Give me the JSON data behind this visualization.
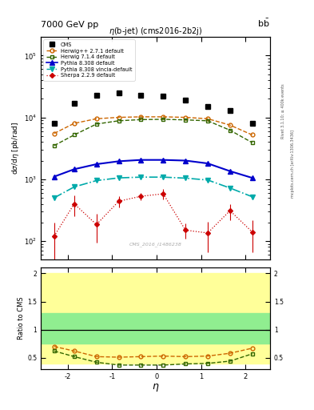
{
  "title_top": "7000 GeV pp",
  "title_top_right": "b$\\bar{b}$",
  "plot_title": "$\\eta$(b-jet) (cms2016-2b2j)",
  "xlabel": "$\\eta$",
  "ylabel_main": "d$\\sigma$/d$\\eta$ [pb/rad]",
  "ylabel_ratio": "Ratio to CMS",
  "right_label_top": "Rivet 3.1.10; ≥ 400k events",
  "right_label_bot": "mcplots.cern.ch [arXiv:1306.3436]",
  "watermark": "CMS_2016_I1486238",
  "cms_eta": [
    -2.3,
    -1.85,
    -1.35,
    -0.85,
    -0.35,
    0.15,
    0.65,
    1.15,
    1.65,
    2.15
  ],
  "cms_vals": [
    8000,
    17000,
    23000,
    25000,
    23000,
    22000,
    19000,
    15000,
    13000,
    8000
  ],
  "herwig271_eta": [
    -2.3,
    -1.85,
    -1.35,
    -0.85,
    -0.35,
    0.15,
    0.65,
    1.15,
    1.65,
    2.15
  ],
  "herwig271_vals": [
    5500,
    8000,
    9500,
    10000,
    10200,
    10200,
    10000,
    9500,
    7500,
    5200
  ],
  "herwig714_eta": [
    -2.3,
    -1.85,
    -1.35,
    -0.85,
    -0.35,
    0.15,
    0.65,
    1.15,
    1.65,
    2.15
  ],
  "herwig714_vals": [
    3500,
    5200,
    7800,
    8800,
    9200,
    9300,
    9100,
    8800,
    6200,
    3900
  ],
  "pythia8308_eta": [
    -2.3,
    -1.85,
    -1.35,
    -0.85,
    -0.35,
    0.15,
    0.65,
    1.15,
    1.65,
    2.15
  ],
  "pythia8308_vals": [
    1100,
    1450,
    1750,
    1950,
    2050,
    2050,
    2000,
    1800,
    1350,
    1050
  ],
  "pythia8308v_eta": [
    -2.3,
    -1.85,
    -1.35,
    -0.85,
    -0.35,
    0.15,
    0.65,
    1.15,
    1.65,
    2.15
  ],
  "pythia8308v_vals": [
    500,
    750,
    950,
    1050,
    1080,
    1080,
    1040,
    970,
    720,
    520
  ],
  "sherpa229_eta": [
    -2.3,
    -1.85,
    -1.35,
    -0.85,
    -0.35,
    0.15,
    0.65,
    1.15,
    1.65,
    2.15
  ],
  "sherpa229_vals": [
    120,
    400,
    185,
    440,
    530,
    580,
    150,
    135,
    310,
    140
  ],
  "sherpa229_yerr_lo": [
    80,
    150,
    90,
    90,
    70,
    110,
    40,
    70,
    90,
    75
  ],
  "sherpa229_yerr_hi": [
    80,
    150,
    90,
    90,
    70,
    110,
    40,
    70,
    90,
    75
  ],
  "herwig271_ratio": [
    0.7,
    0.62,
    0.52,
    0.51,
    0.52,
    0.53,
    0.52,
    0.53,
    0.58,
    0.67
  ],
  "herwig714_ratio": [
    0.62,
    0.52,
    0.42,
    0.37,
    0.37,
    0.37,
    0.39,
    0.4,
    0.44,
    0.57
  ],
  "green_band_lo": 0.75,
  "green_band_hi": 1.3,
  "yellow_band_lo": 0.4,
  "yellow_band_hi": 2.0,
  "ylim_main_lo": 50,
  "ylim_main_hi": 200000,
  "ylim_ratio_lo": 0.3,
  "ylim_ratio_hi": 2.1,
  "color_cms": "#000000",
  "color_herwig271": "#cc6600",
  "color_herwig714": "#336600",
  "color_pythia8308": "#0000cc",
  "color_pythia8308v": "#00aaaa",
  "color_sherpa229": "#cc0000",
  "green_color": "#90ee90",
  "yellow_color": "#ffff99"
}
